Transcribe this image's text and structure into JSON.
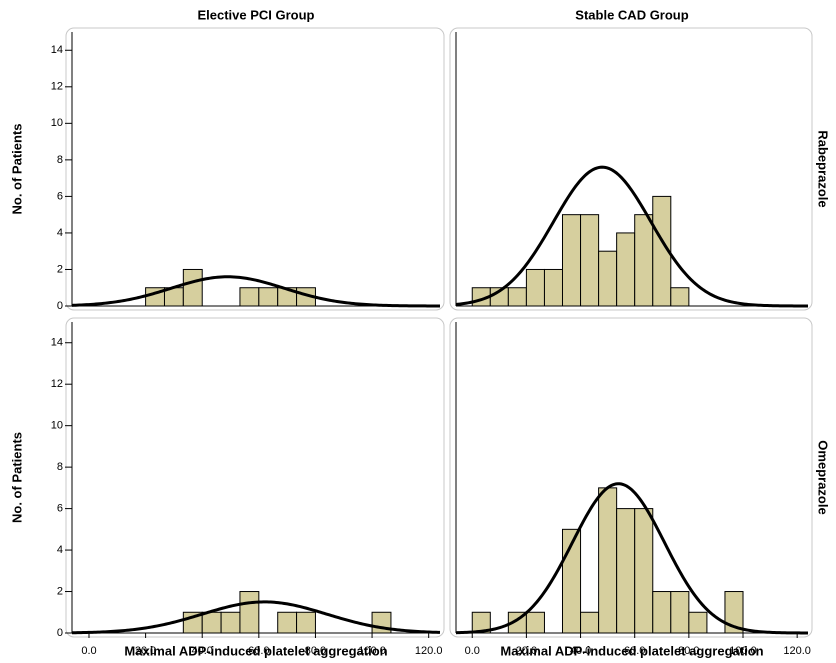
{
  "chart_data": [
    {
      "type": "histogram",
      "title": "Elective PCI Group",
      "y_label": "No. of Patients",
      "bins": [
        0,
        6.67,
        13.33,
        20,
        26.67,
        33.33,
        40,
        46.67,
        53.33,
        60,
        66.67,
        73.33,
        80,
        86.67,
        93.33,
        100,
        106.67
      ],
      "values": [
        0,
        0,
        0,
        1,
        1,
        2,
        0,
        0,
        1,
        1,
        1,
        1,
        0,
        0,
        0,
        0
      ],
      "color": "#d6cf9e",
      "normal_curve": {
        "mean": 49,
        "sd": 20,
        "peak": 1.6
      },
      "xlim": [
        -6,
        124
      ],
      "ylim": [
        0,
        15
      ],
      "yticks": [
        0,
        2,
        4,
        6,
        8,
        10,
        12,
        14
      ]
    },
    {
      "type": "histogram",
      "title": "Stable CAD Group",
      "row_label": "Rabeprazole",
      "bins": [
        0,
        6.67,
        13.33,
        20,
        26.67,
        33.33,
        40,
        46.67,
        53.33,
        60,
        66.67,
        73.33,
        80,
        86.67,
        93.33,
        100,
        106.67
      ],
      "values": [
        1,
        1,
        1,
        2,
        2,
        5,
        5,
        3,
        4,
        5,
        6,
        1,
        0,
        0,
        0,
        0
      ],
      "color": "#d6cf9e",
      "normal_curve": {
        "mean": 48,
        "sd": 18,
        "peak": 7.6
      },
      "xlim": [
        -6,
        124
      ],
      "ylim": [
        0,
        15
      ]
    },
    {
      "type": "histogram",
      "y_label": "No. of Patients",
      "x_label": "Maximal ADP-induced platelet aggregation",
      "bins": [
        0,
        6.67,
        13.33,
        20,
        26.67,
        33.33,
        40,
        46.67,
        53.33,
        60,
        66.67,
        73.33,
        80,
        86.67,
        93.33,
        100,
        106.67
      ],
      "values": [
        0,
        0,
        0,
        0,
        0,
        1,
        1,
        1,
        2,
        0,
        1,
        1,
        0,
        0,
        0,
        1
      ],
      "color": "#d6cf9e",
      "normal_curve": {
        "mean": 62,
        "sd": 22,
        "peak": 1.5
      },
      "xlim": [
        -6,
        124
      ],
      "ylim": [
        0,
        15
      ],
      "yticks": [
        0,
        2,
        4,
        6,
        8,
        10,
        12,
        14
      ],
      "xticks": [
        {
          "value": 0,
          "label": "0.0"
        },
        {
          "value": 20,
          "label": "20.0"
        },
        {
          "value": 40,
          "label": "40.0"
        },
        {
          "value": 60,
          "label": "60.0"
        },
        {
          "value": 80,
          "label": "80.0"
        },
        {
          "value": 100,
          "label": "100.0"
        },
        {
          "value": 120,
          "label": "120.0"
        }
      ]
    },
    {
      "type": "histogram",
      "row_label": "Omeprazole",
      "x_label": "Maximal ADP-induced platelet aggregation",
      "bins": [
        0,
        6.67,
        13.33,
        20,
        26.67,
        33.33,
        40,
        46.67,
        53.33,
        60,
        66.67,
        73.33,
        80,
        86.67,
        93.33,
        100,
        106.67
      ],
      "values": [
        1,
        0,
        1,
        1,
        0,
        5,
        1,
        7,
        6,
        6,
        2,
        2,
        1,
        0,
        2,
        0
      ],
      "color": "#d6cf9e",
      "normal_curve": {
        "mean": 54,
        "sd": 17,
        "peak": 7.2
      },
      "xlim": [
        -6,
        124
      ],
      "ylim": [
        0,
        15
      ],
      "xticks": [
        {
          "value": 0,
          "label": "0.0"
        },
        {
          "value": 20,
          "label": "20.0"
        },
        {
          "value": 40,
          "label": "40.0"
        },
        {
          "value": 60,
          "label": "60.0"
        },
        {
          "value": 80,
          "label": "80.0"
        },
        {
          "value": 100,
          "label": "100.0"
        },
        {
          "value": 120,
          "label": "120.0"
        }
      ]
    }
  ]
}
